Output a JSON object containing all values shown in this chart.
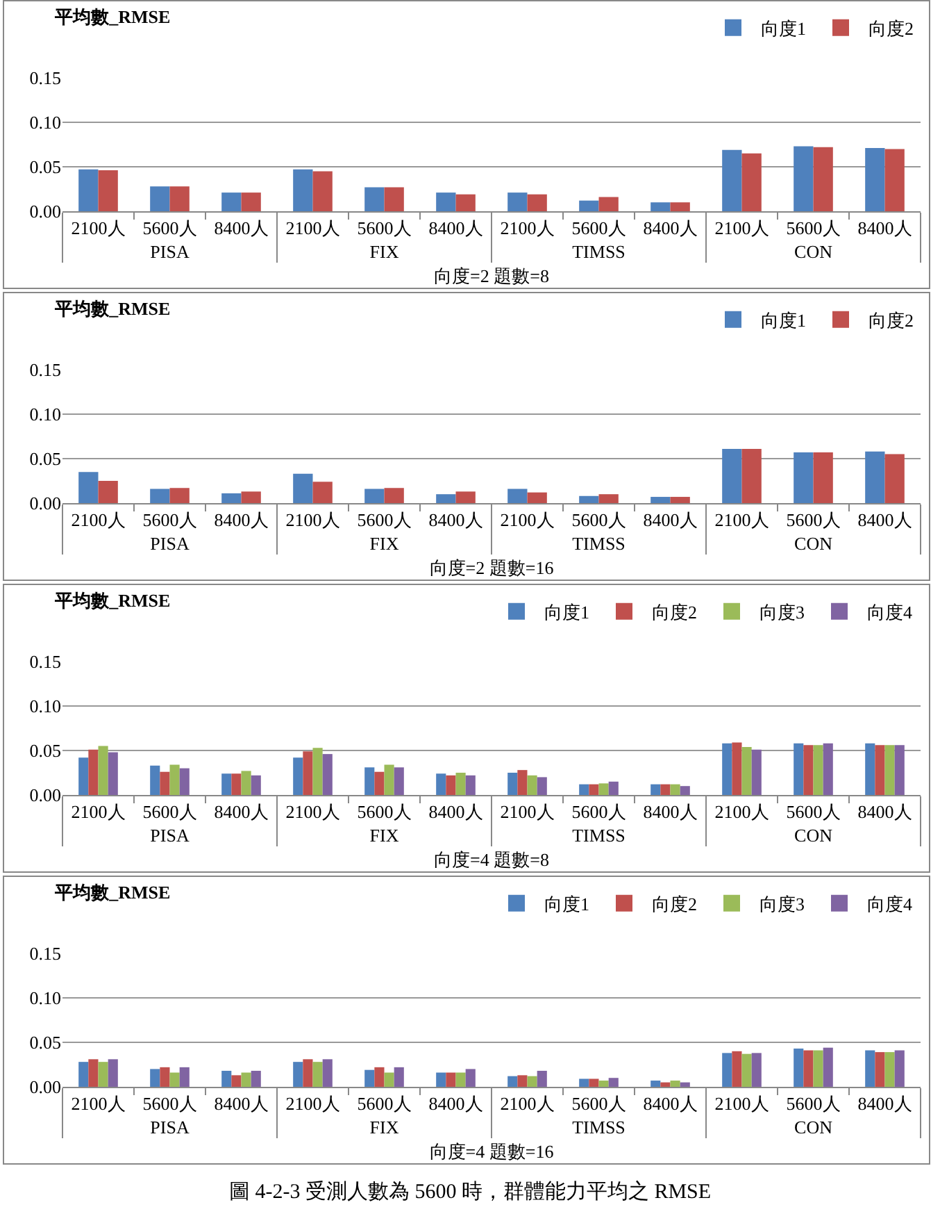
{
  "chart_data": [
    {
      "type": "bar",
      "title": "平均數_RMSE",
      "xlabel": "向度=2 題數=8",
      "categories": [
        "2100人",
        "5600人",
        "8400人",
        "2100人",
        "5600人",
        "8400人",
        "2100人",
        "5600人",
        "8400人",
        "2100人",
        "5600人",
        "8400人"
      ],
      "annotations": [
        "PISA",
        "FIX",
        "TIMSS",
        "CON"
      ],
      "ylim": [
        0,
        0.15
      ],
      "yticks": [
        {
          "value": 0,
          "label": "0.00"
        },
        {
          "value": 0.05,
          "label": "0.05"
        },
        {
          "value": 0.1,
          "label": "0.10"
        },
        {
          "value": 0.15,
          "label": "0.15"
        }
      ],
      "grid": "y",
      "legend": "top right",
      "series": [
        {
          "name": "向度1",
          "color": "#4f81bd",
          "values": [
            0.047,
            0.028,
            0.021,
            0.047,
            0.027,
            0.021,
            0.021,
            0.012,
            0.01,
            0.069,
            0.073,
            0.071
          ]
        },
        {
          "name": "向度2",
          "color": "#c0504d",
          "values": [
            0.046,
            0.028,
            0.021,
            0.045,
            0.027,
            0.019,
            0.019,
            0.016,
            0.01,
            0.065,
            0.072,
            0.07
          ]
        }
      ]
    },
    {
      "type": "bar",
      "title": "平均數_RMSE",
      "xlabel": "向度=2 題數=16",
      "categories": [
        "2100人",
        "5600人",
        "8400人",
        "2100人",
        "5600人",
        "8400人",
        "2100人",
        "5600人",
        "8400人",
        "2100人",
        "5600人",
        "8400人"
      ],
      "annotations": [
        "PISA",
        "FIX",
        "TIMSS",
        "CON"
      ],
      "ylim": [
        0,
        0.15
      ],
      "yticks": [
        {
          "value": 0,
          "label": "0.00"
        },
        {
          "value": 0.05,
          "label": "0.05"
        },
        {
          "value": 0.1,
          "label": "0.10"
        },
        {
          "value": 0.15,
          "label": "0.15"
        }
      ],
      "grid": "y",
      "legend": "top right",
      "series": [
        {
          "name": "向度1",
          "color": "#4f81bd",
          "values": [
            0.035,
            0.016,
            0.011,
            0.033,
            0.016,
            0.01,
            0.016,
            0.008,
            0.007,
            0.061,
            0.057,
            0.058
          ]
        },
        {
          "name": "向度2",
          "color": "#c0504d",
          "values": [
            0.025,
            0.017,
            0.013,
            0.024,
            0.017,
            0.013,
            0.012,
            0.01,
            0.007,
            0.061,
            0.057,
            0.055
          ]
        }
      ]
    },
    {
      "type": "bar",
      "title": "平均數_RMSE",
      "xlabel": "向度=4 題數=8",
      "categories": [
        "2100人",
        "5600人",
        "8400人",
        "2100人",
        "5600人",
        "8400人",
        "2100人",
        "5600人",
        "8400人",
        "2100人",
        "5600人",
        "8400人"
      ],
      "annotations": [
        "PISA",
        "FIX",
        "TIMSS",
        "CON"
      ],
      "ylim": [
        0,
        0.15
      ],
      "yticks": [
        {
          "value": 0,
          "label": "0.00"
        },
        {
          "value": 0.05,
          "label": "0.05"
        },
        {
          "value": 0.1,
          "label": "0.10"
        },
        {
          "value": 0.15,
          "label": "0.15"
        }
      ],
      "grid": "y",
      "legend": "top right",
      "series": [
        {
          "name": "向度1",
          "color": "#4f81bd",
          "values": [
            0.042,
            0.033,
            0.024,
            0.042,
            0.031,
            0.024,
            0.025,
            0.012,
            0.012,
            0.058,
            0.058,
            0.058
          ]
        },
        {
          "name": "向度2",
          "color": "#c0504d",
          "values": [
            0.051,
            0.026,
            0.024,
            0.049,
            0.026,
            0.022,
            0.028,
            0.012,
            0.012,
            0.059,
            0.056,
            0.056
          ]
        },
        {
          "name": "向度3",
          "color": "#9bbb59",
          "values": [
            0.055,
            0.034,
            0.027,
            0.053,
            0.034,
            0.025,
            0.022,
            0.013,
            0.012,
            0.054,
            0.056,
            0.056
          ]
        },
        {
          "name": "向度4",
          "color": "#8064a2",
          "values": [
            0.048,
            0.03,
            0.022,
            0.046,
            0.031,
            0.022,
            0.02,
            0.015,
            0.01,
            0.051,
            0.058,
            0.056
          ]
        }
      ]
    },
    {
      "type": "bar",
      "title": "平均數_RMSE",
      "xlabel": "向度=4 題數=16",
      "categories": [
        "2100人",
        "5600人",
        "8400人",
        "2100人",
        "5600人",
        "8400人",
        "2100人",
        "5600人",
        "8400人",
        "2100人",
        "5600人",
        "8400人"
      ],
      "annotations": [
        "PISA",
        "FIX",
        "TIMSS",
        "CON"
      ],
      "ylim": [
        0,
        0.15
      ],
      "yticks": [
        {
          "value": 0,
          "label": "0.00"
        },
        {
          "value": 0.05,
          "label": "0.05"
        },
        {
          "value": 0.1,
          "label": "0.10"
        },
        {
          "value": 0.15,
          "label": "0.15"
        }
      ],
      "grid": "y",
      "legend": "top right",
      "series": [
        {
          "name": "向度1",
          "color": "#4f81bd",
          "values": [
            0.028,
            0.02,
            0.018,
            0.028,
            0.019,
            0.016,
            0.012,
            0.009,
            0.007,
            0.038,
            0.043,
            0.041
          ]
        },
        {
          "name": "向度2",
          "color": "#c0504d",
          "values": [
            0.031,
            0.022,
            0.013,
            0.031,
            0.022,
            0.016,
            0.013,
            0.009,
            0.005,
            0.04,
            0.041,
            0.039
          ]
        },
        {
          "name": "向度3",
          "color": "#9bbb59",
          "values": [
            0.028,
            0.016,
            0.016,
            0.028,
            0.016,
            0.016,
            0.012,
            0.007,
            0.007,
            0.037,
            0.041,
            0.039
          ]
        },
        {
          "name": "向度4",
          "color": "#8064a2",
          "values": [
            0.031,
            0.022,
            0.018,
            0.031,
            0.022,
            0.02,
            0.018,
            0.01,
            0.005,
            0.038,
            0.044,
            0.041
          ]
        }
      ]
    },
    {
      "type": "other",
      "title": "圖 4-2-3 受測人數為 5600 時，群體能力平均之 RMSE"
    }
  ]
}
